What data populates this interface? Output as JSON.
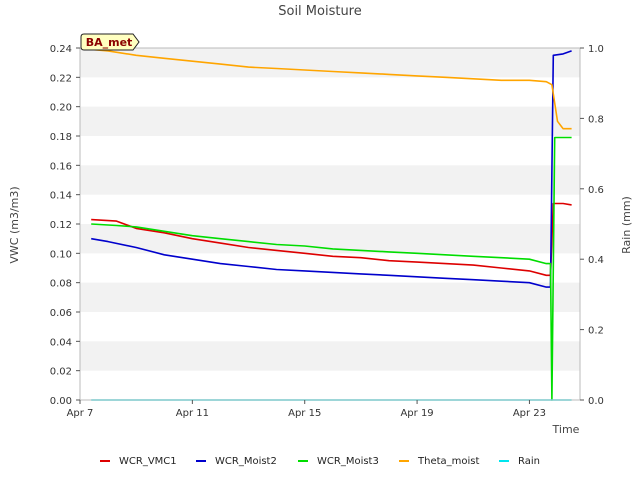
{
  "chart_data": {
    "type": "line",
    "title": "Soil Moisture",
    "site_label": "BA_met",
    "xlabel": "Time",
    "ylabel": "VWC (m3/m3)",
    "y2label": "Rain (mm)",
    "xlim": [
      7,
      24.8
    ],
    "ylim": [
      0,
      0.24
    ],
    "y2lim": [
      0,
      1.0
    ],
    "x_ticks": [
      7,
      11,
      15,
      19,
      23
    ],
    "x_tick_labels": [
      "Apr 7",
      "Apr 11",
      "Apr 15",
      "Apr 19",
      "Apr 23"
    ],
    "y_ticks": [
      0.0,
      0.02,
      0.04,
      0.06,
      0.08,
      0.1,
      0.12,
      0.14,
      0.16,
      0.18,
      0.2,
      0.22,
      0.24
    ],
    "y_tick_labels": [
      "0.00",
      "0.02",
      "0.04",
      "0.06",
      "0.08",
      "0.10",
      "0.12",
      "0.14",
      "0.16",
      "0.18",
      "0.20",
      "0.22",
      "0.24"
    ],
    "y2_ticks": [
      0.0,
      0.2,
      0.4,
      0.6,
      0.8,
      1.0
    ],
    "y2_tick_labels": [
      "0.0",
      "0.2",
      "0.4",
      "0.6",
      "0.8",
      "1.0"
    ],
    "grid": "horizontal bands",
    "legend_position": "bottom",
    "series": [
      {
        "name": "WCR_VMC1",
        "color": "#dd0000",
        "axis": "left",
        "x": [
          7.4,
          8.3,
          9.0,
          10.0,
          11.0,
          12.0,
          13.0,
          14.0,
          15.0,
          16.0,
          17.0,
          18.0,
          19.0,
          20.0,
          21.0,
          22.0,
          23.0,
          23.6,
          23.75,
          23.85,
          24.2,
          24.5
        ],
        "y": [
          0.123,
          0.122,
          0.117,
          0.114,
          0.11,
          0.107,
          0.104,
          0.102,
          0.1,
          0.098,
          0.097,
          0.095,
          0.094,
          0.093,
          0.092,
          0.09,
          0.088,
          0.085,
          0.085,
          0.134,
          0.134,
          0.133
        ]
      },
      {
        "name": "WCR_Moist2",
        "color": "#0000cc",
        "axis": "left",
        "x": [
          7.4,
          8.0,
          9.0,
          10.0,
          11.0,
          12.0,
          13.0,
          14.0,
          15.0,
          16.0,
          17.0,
          18.0,
          19.0,
          20.0,
          21.0,
          22.0,
          23.0,
          23.6,
          23.75,
          23.85,
          24.2,
          24.5
        ],
        "y": [
          0.11,
          0.108,
          0.104,
          0.099,
          0.096,
          0.093,
          0.091,
          0.089,
          0.088,
          0.087,
          0.086,
          0.085,
          0.084,
          0.083,
          0.082,
          0.081,
          0.08,
          0.077,
          0.077,
          0.235,
          0.236,
          0.238
        ]
      },
      {
        "name": "WCR_Moist3",
        "color": "#00dd00",
        "axis": "left",
        "x": [
          7.4,
          8.3,
          9.0,
          10.0,
          11.0,
          12.0,
          13.0,
          14.0,
          15.0,
          16.0,
          17.0,
          18.0,
          19.0,
          20.0,
          21.0,
          22.0,
          23.0,
          23.6,
          23.75,
          23.8,
          23.9,
          24.5
        ],
        "y": [
          0.12,
          0.119,
          0.118,
          0.115,
          0.112,
          0.11,
          0.108,
          0.106,
          0.105,
          0.103,
          0.102,
          0.101,
          0.1,
          0.099,
          0.098,
          0.097,
          0.096,
          0.093,
          0.093,
          0.0,
          0.179,
          0.179
        ]
      },
      {
        "name": "Theta_moist",
        "color": "#ffa500",
        "axis": "left",
        "x": [
          7.4,
          8.0,
          9.0,
          10.0,
          11.0,
          12.0,
          13.0,
          14.0,
          15.0,
          16.0,
          17.0,
          18.0,
          19.0,
          20.0,
          21.0,
          22.0,
          23.0,
          23.6,
          23.8,
          24.0,
          24.2,
          24.5
        ],
        "y": [
          0.239,
          0.238,
          0.235,
          0.233,
          0.231,
          0.229,
          0.227,
          0.226,
          0.225,
          0.224,
          0.223,
          0.222,
          0.221,
          0.22,
          0.219,
          0.218,
          0.218,
          0.217,
          0.215,
          0.19,
          0.185,
          0.185
        ]
      },
      {
        "name": "Rain",
        "color": "#00e5ee",
        "axis": "right",
        "x": [
          7.4,
          24.5
        ],
        "y": [
          0.0,
          0.0
        ]
      }
    ]
  }
}
